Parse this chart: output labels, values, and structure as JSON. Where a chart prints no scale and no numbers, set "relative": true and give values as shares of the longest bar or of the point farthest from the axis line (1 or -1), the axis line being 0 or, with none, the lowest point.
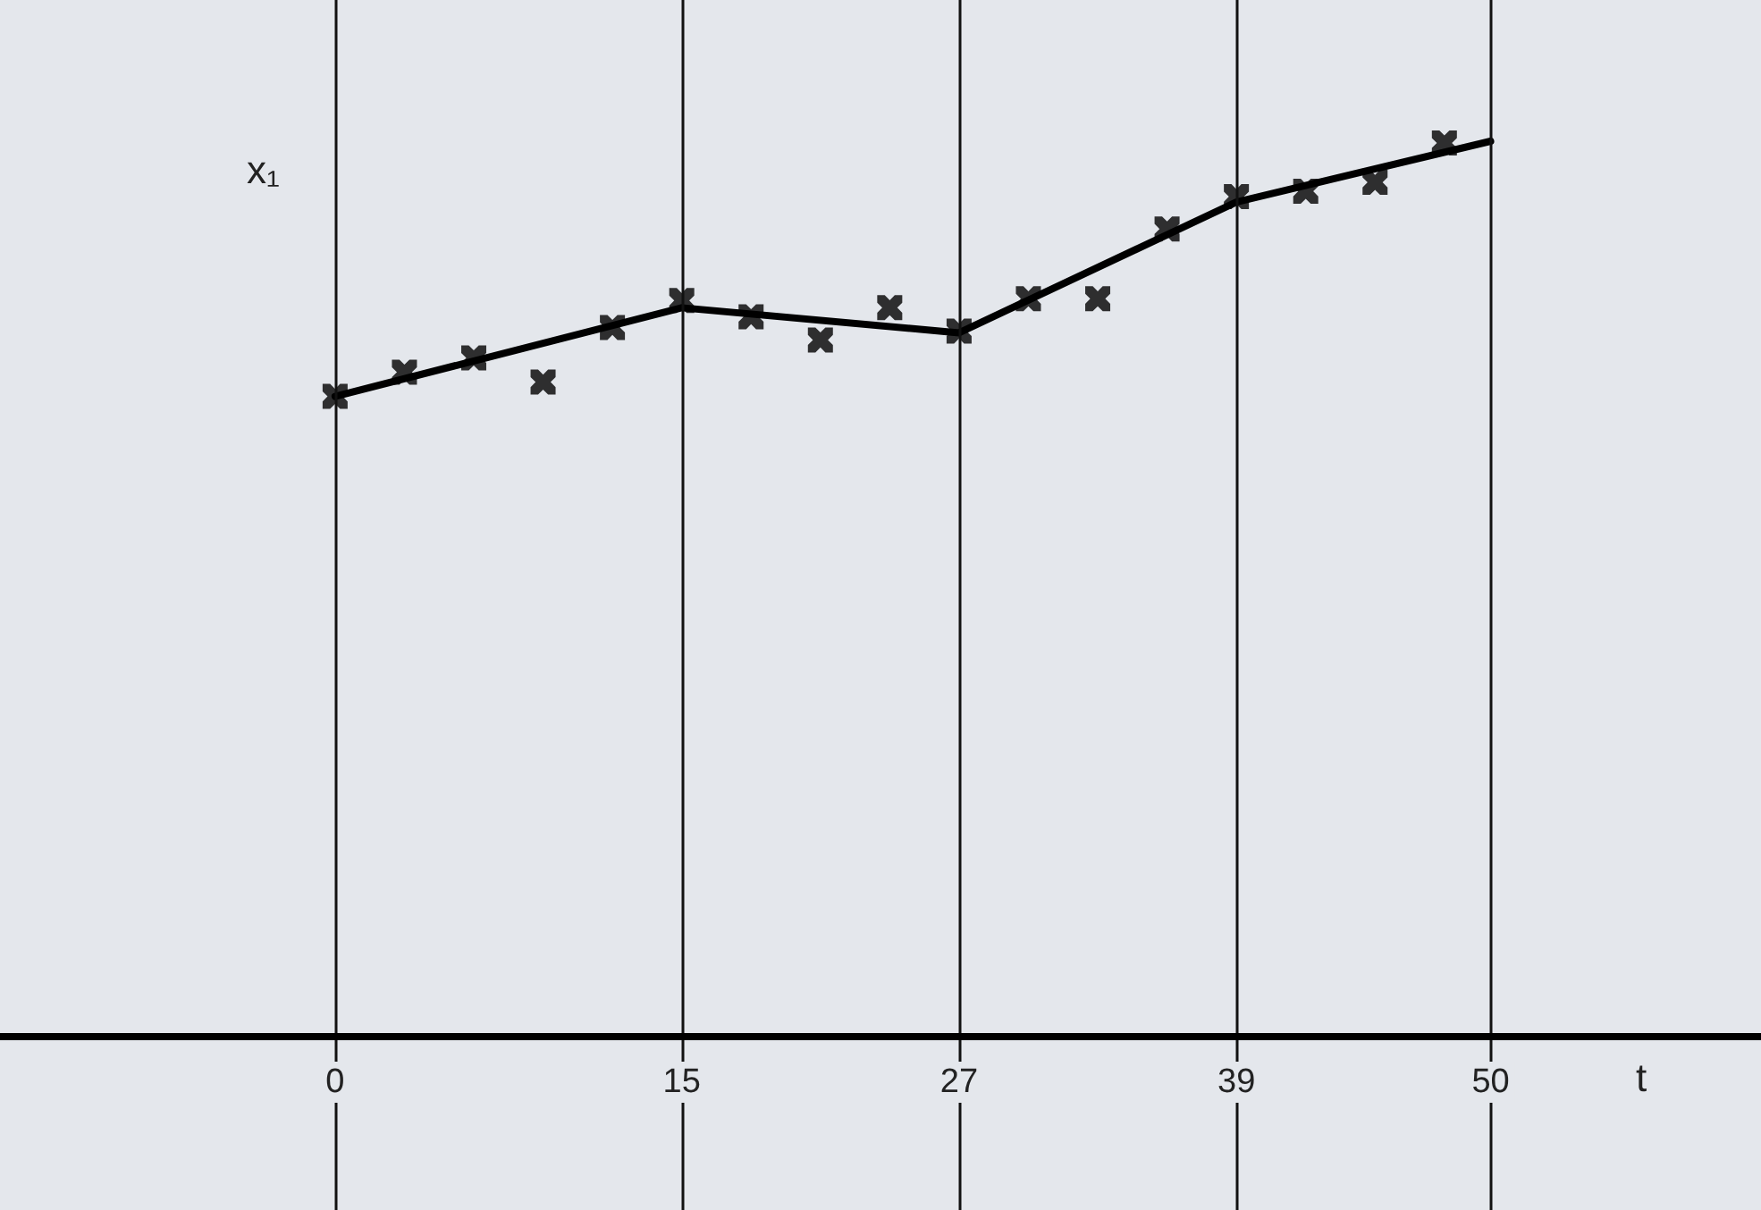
{
  "chart_data": {
    "type": "line",
    "xlabel": "t",
    "ylabel": "x₁",
    "relative": true,
    "grid": "x",
    "xlim": [
      -14.5,
      61.7
    ],
    "xticks": [
      0,
      15,
      27,
      39,
      50
    ],
    "series": [
      {
        "color": "#000000",
        "marker": "none",
        "x": [
          0,
          15,
          27,
          39,
          50
        ],
        "values": [
          0.715,
          0.814,
          0.786,
          0.932,
          1
        ]
      },
      {
        "type": "scatter",
        "color": "#000000",
        "marker": "cross",
        "x": [
          0,
          3,
          6,
          9,
          12,
          15,
          18,
          21,
          24,
          27,
          30,
          33,
          36,
          39,
          42,
          45,
          48
        ],
        "values": [
          0.715,
          0.742,
          0.758,
          0.731,
          0.792,
          0.822,
          0.804,
          0.778,
          0.814,
          0.788,
          0.824,
          0.824,
          0.902,
          0.938,
          0.944,
          0.954,
          0.998
        ]
      }
    ]
  }
}
